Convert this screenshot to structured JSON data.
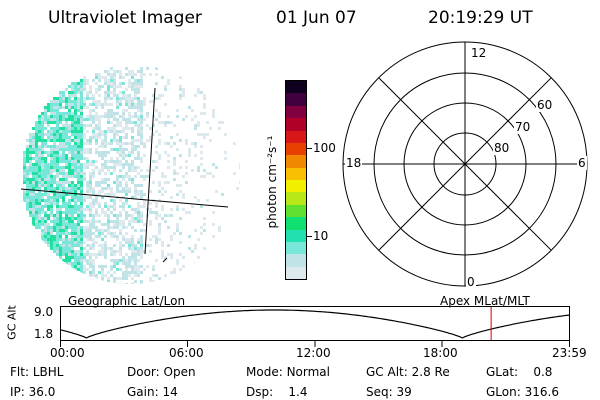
{
  "header": {
    "title": "Ultraviolet Imager",
    "date": "01 Jun 07",
    "time": "20:19:29 UT"
  },
  "colorbar": {
    "unit_label": "photon cm⁻²s⁻¹",
    "ticks": [
      {
        "label": "100",
        "value": 100
      },
      {
        "label": "10",
        "value": 10
      }
    ],
    "colors": [
      "#dde9ec",
      "#bfe3e6",
      "#78e6d8",
      "#22e0b0",
      "#10e070",
      "#60e030",
      "#b8e818",
      "#f0f000",
      "#f8c000",
      "#f08800",
      "#e84000",
      "#d81818",
      "#b00028",
      "#800040",
      "#400040",
      "#100020"
    ]
  },
  "polar_plot": {
    "labels": {
      "top": "12",
      "bottom": "0",
      "left": "18",
      "right": "6",
      "ring60": "60",
      "ring70": "70",
      "ring80": "80"
    }
  },
  "timeline": {
    "left_label": "Geographic Lat/Lon",
    "right_label": "Apex MLat/MLT",
    "axis_label": "GC Alt",
    "y_ticks": [
      "9.0",
      "1.8"
    ],
    "x_ticks": [
      "00:00",
      "06:00",
      "12:00",
      "18:00",
      "23:59"
    ],
    "current_time_fraction": 0.8467
  },
  "info": {
    "row1": [
      {
        "key": "Flt:",
        "value": "LBHL"
      },
      {
        "key": "Door:",
        "value": "Open"
      },
      {
        "key": "Mode:",
        "value": "Normal"
      },
      {
        "key": "GC Alt:",
        "value": "2.8 Re"
      },
      {
        "key": "GLat:",
        "value": "0.8"
      }
    ],
    "row2": [
      {
        "key": "IP:",
        "value": "36.0"
      },
      {
        "key": "Gain:",
        "value": "14"
      },
      {
        "key": "Dsp:",
        "value": "1.4"
      },
      {
        "key": "Seq:",
        "value": "39"
      },
      {
        "key": "GLon:",
        "value": "316.6"
      }
    ]
  }
}
